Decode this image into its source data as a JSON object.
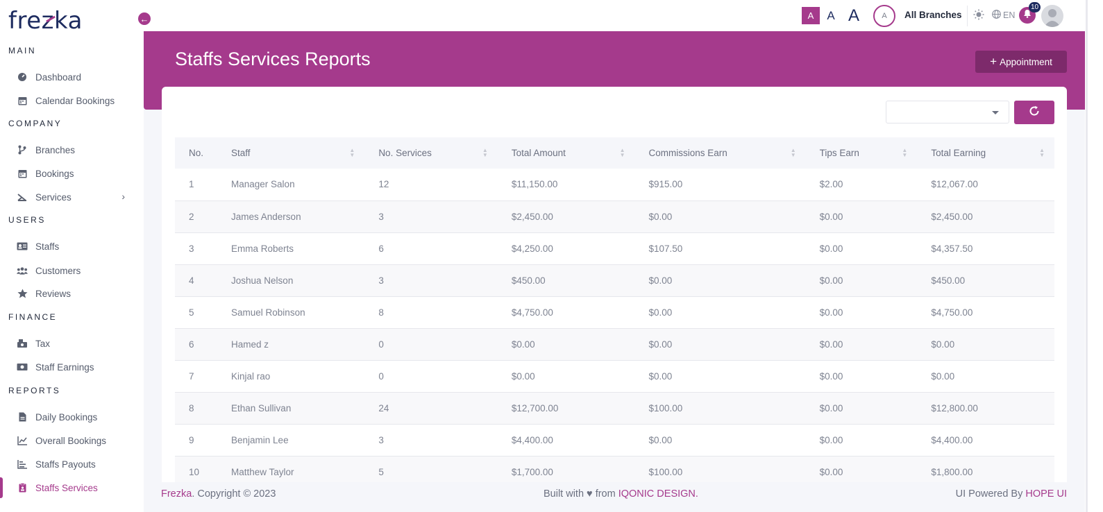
{
  "brand": {
    "logo_pre": "fre",
    "logo_z": "z",
    "logo_post": "ka"
  },
  "sidebar": {
    "sections": [
      {
        "title": "MAIN"
      },
      {
        "title": "COMPANY"
      },
      {
        "title": "USERS"
      },
      {
        "title": "FINANCE"
      },
      {
        "title": "REPORTS"
      }
    ],
    "items": [
      {
        "label": "Dashboard",
        "icon": "dashboard-icon"
      },
      {
        "label": "Calendar Bookings",
        "icon": "calendar-icon"
      },
      {
        "label": "Branches",
        "icon": "branch-icon"
      },
      {
        "label": "Bookings",
        "icon": "calendar-icon"
      },
      {
        "label": "Services",
        "icon": "scissors-icon"
      },
      {
        "label": "Staffs",
        "icon": "id-card-icon"
      },
      {
        "label": "Customers",
        "icon": "users-icon"
      },
      {
        "label": "Reviews",
        "icon": "star-icon"
      },
      {
        "label": "Tax",
        "icon": "tax-icon"
      },
      {
        "label": "Staff Earnings",
        "icon": "money-icon"
      },
      {
        "label": "Daily Bookings",
        "icon": "file-icon"
      },
      {
        "label": "Overall Bookings",
        "icon": "chart-line-icon"
      },
      {
        "label": "Staffs Payouts",
        "icon": "bar-list-icon"
      },
      {
        "label": "Staffs Services",
        "icon": "clipboard-icon"
      }
    ]
  },
  "topbar": {
    "font_small": "A",
    "font_medium": "A",
    "font_large": "A",
    "branch_avatar": "A",
    "branch_label": "All Branches",
    "language": "EN",
    "notification_count": "10"
  },
  "header": {
    "title": "Staffs Services Reports",
    "appointment_button": "Appointment",
    "appointment_prefix": "+"
  },
  "filter": {
    "select_value": ""
  },
  "table": {
    "columns": [
      "No.",
      "Staff",
      "No. Services",
      "Total Amount",
      "Commissions Earn",
      "Tips Earn",
      "Total Earning"
    ],
    "rows": [
      [
        "1",
        "Manager Salon",
        "12",
        "$11,150.00",
        "$915.00",
        "$2.00",
        "$12,067.00"
      ],
      [
        "2",
        "James Anderson",
        "3",
        "$2,450.00",
        "$0.00",
        "$0.00",
        "$2,450.00"
      ],
      [
        "3",
        "Emma Roberts",
        "6",
        "$4,250.00",
        "$107.50",
        "$0.00",
        "$4,357.50"
      ],
      [
        "4",
        "Joshua Nelson",
        "3",
        "$450.00",
        "$0.00",
        "$0.00",
        "$450.00"
      ],
      [
        "5",
        "Samuel Robinson",
        "8",
        "$4,750.00",
        "$0.00",
        "$0.00",
        "$4,750.00"
      ],
      [
        "6",
        "Hamed z",
        "0",
        "$0.00",
        "$0.00",
        "$0.00",
        "$0.00"
      ],
      [
        "7",
        "Kinjal rao",
        "0",
        "$0.00",
        "$0.00",
        "$0.00",
        "$0.00"
      ],
      [
        "8",
        "Ethan Sullivan",
        "24",
        "$12,700.00",
        "$100.00",
        "$0.00",
        "$12,800.00"
      ],
      [
        "9",
        "Benjamin Lee",
        "3",
        "$4,400.00",
        "$0.00",
        "$0.00",
        "$4,400.00"
      ],
      [
        "10",
        "Matthew Taylor",
        "5",
        "$1,700.00",
        "$100.00",
        "$0.00",
        "$1,800.00"
      ]
    ]
  },
  "footer": {
    "brand": "Frezka",
    "copyright": ". Copyright © 2023",
    "built_with": "Built with ♥ from ",
    "built_by": "IQONIC DESIGN.",
    "powered_by": "UI Powered By ",
    "powered_link": "HOPE UI"
  },
  "colors": {
    "accent": "#a53a8c",
    "accent_dark": "#7d2a6b",
    "navy": "#1d2b5f"
  }
}
